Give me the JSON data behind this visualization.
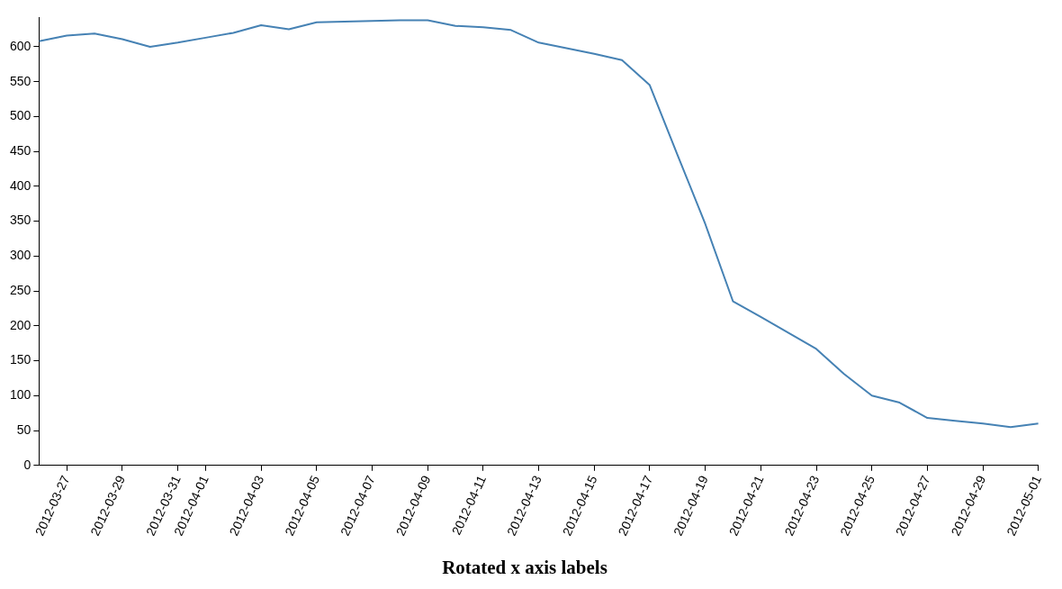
{
  "chart_data": {
    "type": "line",
    "title": "Rotated x axis labels",
    "x": [
      "2012-03-26",
      "2012-03-27",
      "2012-03-28",
      "2012-03-29",
      "2012-03-30",
      "2012-03-31",
      "2012-04-01",
      "2012-04-02",
      "2012-04-03",
      "2012-04-04",
      "2012-04-05",
      "2012-04-06",
      "2012-04-07",
      "2012-04-08",
      "2012-04-09",
      "2012-04-10",
      "2012-04-11",
      "2012-04-12",
      "2012-04-13",
      "2012-04-14",
      "2012-04-15",
      "2012-04-16",
      "2012-04-17",
      "2012-04-18",
      "2012-04-19",
      "2012-04-20",
      "2012-04-21",
      "2012-04-22",
      "2012-04-23",
      "2012-04-24",
      "2012-04-25",
      "2012-04-26",
      "2012-04-27",
      "2012-04-28",
      "2012-04-29",
      "2012-04-30",
      "2012-05-01"
    ],
    "series": [
      {
        "color": "#4682b4",
        "values": [
          608,
          616,
          619,
          611,
          600,
          606,
          613,
          620,
          631,
          625,
          635,
          636,
          637,
          638,
          638,
          630,
          628,
          624,
          606,
          598,
          590,
          581,
          545,
          445,
          346,
          235,
          213,
          190,
          167,
          131,
          100,
          90,
          68,
          64,
          60,
          55,
          60
        ]
      }
    ],
    "xlim": [
      "2012-03-26",
      "2012-05-01"
    ],
    "xticks": [
      "2012-03-27",
      "2012-03-29",
      "2012-03-31",
      "2012-04-01",
      "2012-04-03",
      "2012-04-05",
      "2012-04-07",
      "2012-04-09",
      "2012-04-11",
      "2012-04-13",
      "2012-04-15",
      "2012-04-17",
      "2012-04-19",
      "2012-04-21",
      "2012-04-23",
      "2012-04-25",
      "2012-04-27",
      "2012-04-29",
      "2012-05-01"
    ],
    "ylim": [
      0,
      642
    ],
    "yticks": [
      0,
      50,
      100,
      150,
      200,
      250,
      300,
      350,
      400,
      450,
      500,
      550,
      600
    ],
    "grid": false,
    "legend": false,
    "marker": "none",
    "line_style": "solid"
  }
}
